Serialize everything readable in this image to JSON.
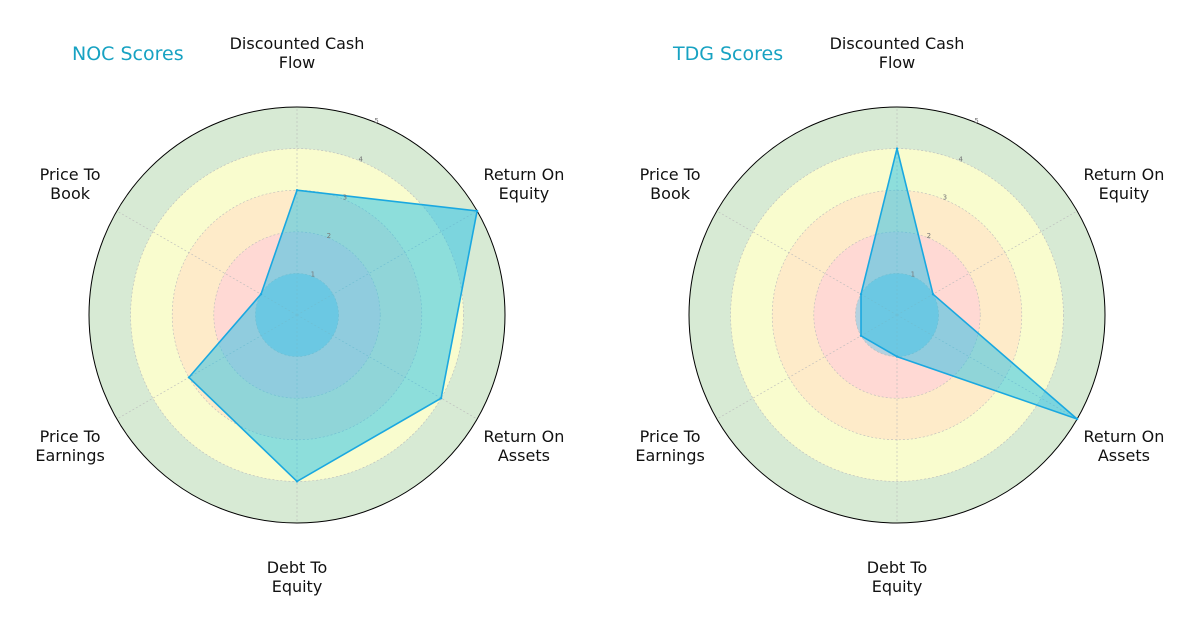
{
  "chart_data": [
    {
      "type": "radar",
      "title": "NOC Scores",
      "axes": [
        "Discounted Cash Flow",
        "Return On Equity",
        "Return On Assets",
        "Debt To Equity",
        "Price To Earnings",
        "Price To Book"
      ],
      "axis_lines": [
        [
          "Discounted Cash",
          "Flow"
        ],
        [
          "Return On",
          "Equity"
        ],
        [
          "Return On",
          "Assets"
        ],
        [
          "Debt To",
          "Equity"
        ],
        [
          "Price To",
          "Earnings"
        ],
        [
          "Price To",
          "Book"
        ]
      ],
      "values": [
        3,
        5,
        4,
        4,
        3,
        1
      ],
      "rlim": [
        0,
        5
      ],
      "ticks": [
        "1",
        "2",
        "3",
        "4",
        "5"
      ]
    },
    {
      "type": "radar",
      "title": "TDG Scores",
      "axes": [
        "Discounted Cash Flow",
        "Return On Equity",
        "Return On Assets",
        "Debt To Equity",
        "Price To Earnings",
        "Price To Book"
      ],
      "axis_lines": [
        [
          "Discounted Cash",
          "Flow"
        ],
        [
          "Return On",
          "Equity"
        ],
        [
          "Return On",
          "Assets"
        ],
        [
          "Debt To",
          "Equity"
        ],
        [
          "Price To",
          "Earnings"
        ],
        [
          "Price To",
          "Book"
        ]
      ],
      "values": [
        4,
        1,
        5,
        1,
        1,
        1
      ],
      "rlim": [
        0,
        5
      ],
      "ticks": [
        "1",
        "2",
        "3",
        "4",
        "5"
      ]
    }
  ],
  "style": {
    "band_colors": [
      "#a8cfe0",
      "#ffd6d6",
      "#ffe8c8",
      "#ffffcc",
      "#d0e6cc"
    ],
    "series_fill": "#22c0e8",
    "series_stroke": "#1aa8e0",
    "title_color": "#17a2c2",
    "grid_color": "#bbbbbb",
    "outline_color": "#000000"
  }
}
